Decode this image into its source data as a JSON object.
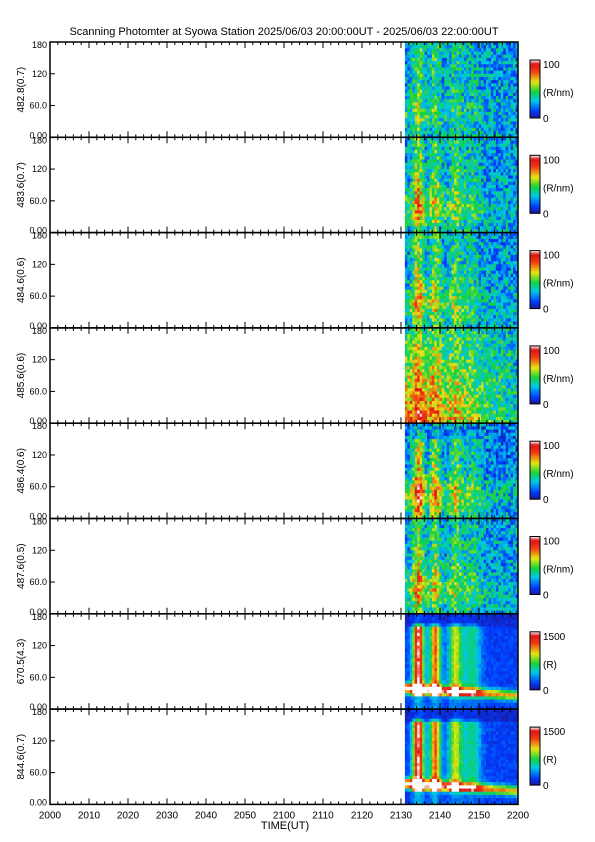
{
  "title": "Scanning Photomter at Syowa Station  2025/06/03 20:00:00UT - 2025/06/03 22:00:00UT",
  "xlabel": "TIME(UT)",
  "chart_data": {
    "type": "heatmap",
    "title": "Scanning Photomter at Syowa Station  2025/06/03 20:00:00UT - 2025/06/03 22:00:00UT",
    "xlabel": "TIME(UT)",
    "x_ticks": [
      "2000",
      "2010",
      "2020",
      "2030",
      "2040",
      "2050",
      "2100",
      "2110",
      "2120",
      "2130",
      "2140",
      "2150",
      "2200"
    ],
    "x_range_minutes_from_2000": [
      0,
      120
    ],
    "data_start_minutes_from_2000": 91,
    "y_ticks": [
      "0.00",
      "60.0",
      "120",
      "180"
    ],
    "ylim": [
      0,
      180
    ],
    "panels": [
      {
        "ylabel": "482.8(0.7)",
        "cbar_max": "100",
        "cbar_min": "0",
        "cbar_unit": "(R/nm)",
        "kind": "weak"
      },
      {
        "ylabel": "483.6(0.7)",
        "cbar_max": "100",
        "cbar_min": "0",
        "cbar_unit": "(R/nm)",
        "kind": "mid"
      },
      {
        "ylabel": "484.6(0.6)",
        "cbar_max": "100",
        "cbar_min": "0",
        "cbar_unit": "(R/nm)",
        "kind": "mid"
      },
      {
        "ylabel": "485.6(0.6)",
        "cbar_max": "100",
        "cbar_min": "0",
        "cbar_unit": "(R/nm)",
        "kind": "wide"
      },
      {
        "ylabel": "486.4(0.6)",
        "cbar_max": "100",
        "cbar_min": "0",
        "cbar_unit": "(R/nm)",
        "kind": "hbeta"
      },
      {
        "ylabel": "487.6(0.5)",
        "cbar_max": "100",
        "cbar_min": "0",
        "cbar_unit": "(R/nm)",
        "kind": "mid"
      },
      {
        "ylabel": "670.5(4.3)",
        "cbar_max": "1500",
        "cbar_min": "0",
        "cbar_unit": "(R)",
        "kind": "strong"
      },
      {
        "ylabel": "844.6(0.7)",
        "cbar_max": "1500",
        "cbar_min": "0",
        "cbar_unit": "(R)",
        "kind": "strong"
      }
    ]
  }
}
